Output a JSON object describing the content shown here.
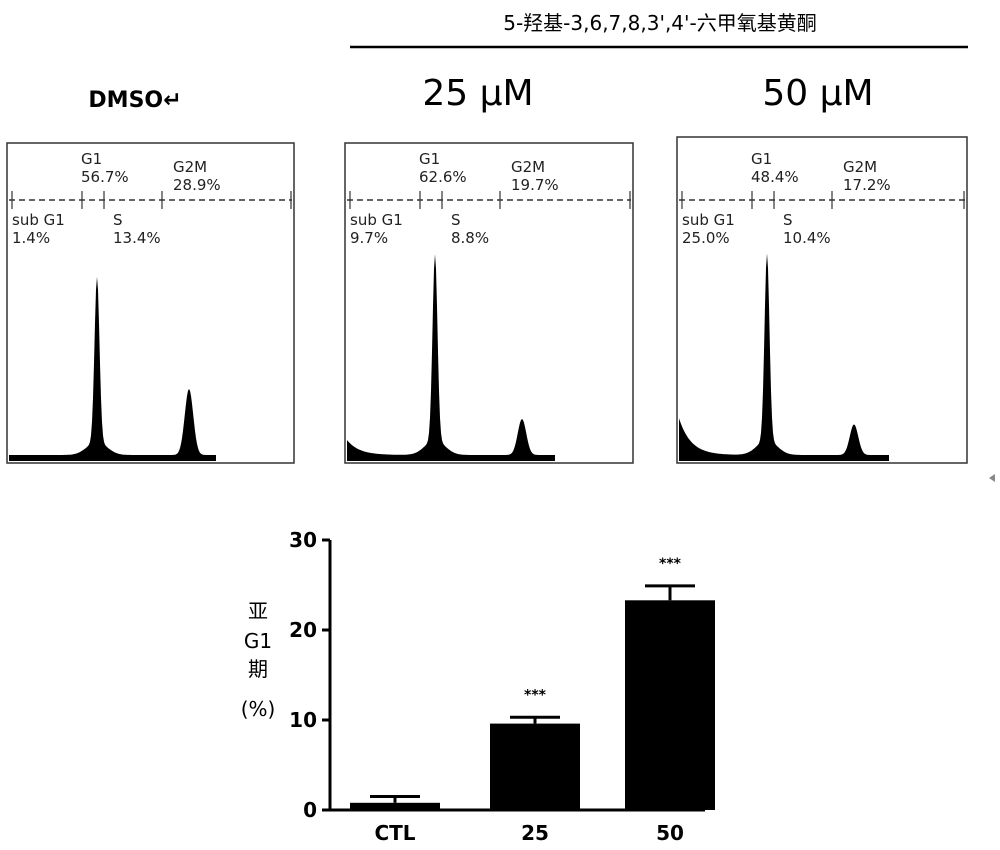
{
  "header": {
    "title": "5-羟基-3,6,7,8,3',4'-六甲氧基黄酮",
    "control_label": "DMSO↵"
  },
  "chart_data": [
    {
      "type": "area",
      "dose_label": "",
      "peaks": {
        "g1": 0.55,
        "g2m": 0.22
      },
      "phases": [
        {
          "name": "sub G1",
          "percent": "1.4%"
        },
        {
          "name": "G1",
          "percent": "56.7%"
        },
        {
          "name": "S",
          "percent": "13.4%"
        },
        {
          "name": "G2M",
          "percent": "28.9%"
        }
      ]
    },
    {
      "type": "area",
      "dose_label": "25 μM",
      "peaks": {
        "g1": 0.62,
        "g2m": 0.12
      },
      "phases": [
        {
          "name": "sub G1",
          "percent": "9.7%"
        },
        {
          "name": "G1",
          "percent": "62.6%"
        },
        {
          "name": "S",
          "percent": "8.8%"
        },
        {
          "name": "G2M",
          "percent": "19.7%"
        }
      ]
    },
    {
      "type": "area",
      "dose_label": "50 μM",
      "peaks": {
        "g1": 0.61,
        "g2m": 0.1
      },
      "phases": [
        {
          "name": "sub G1",
          "percent": "25.0%"
        },
        {
          "name": "G1",
          "percent": "48.4%"
        },
        {
          "name": "S",
          "percent": "10.4%"
        },
        {
          "name": "G2M",
          "percent": "17.2%"
        }
      ]
    },
    {
      "type": "bar",
      "categories": [
        "CTL",
        "25",
        "50"
      ],
      "values": [
        0.8,
        9.6,
        23.3
      ],
      "errors": [
        0.7,
        0.7,
        1.6
      ],
      "significance": [
        "",
        "***",
        "***"
      ],
      "ylabel": "亚G1期(%)",
      "ylim": [
        0,
        30
      ],
      "yticks": [
        "0",
        "10",
        "20",
        "30"
      ]
    }
  ]
}
